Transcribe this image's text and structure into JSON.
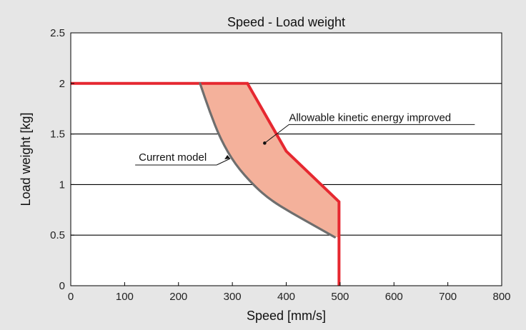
{
  "chart_data": {
    "type": "line",
    "title": "Speed - Load weight",
    "xlabel": "Speed [mm/s]",
    "ylabel": "Load weight [kg]",
    "xlim": [
      0,
      800
    ],
    "ylim": [
      0,
      2.5
    ],
    "xticks": [
      0,
      100,
      200,
      300,
      400,
      500,
      600,
      700,
      800
    ],
    "yticks": [
      0,
      0.5,
      1,
      1.5,
      2,
      2.5
    ],
    "x_tick_labels": [
      "0",
      "100",
      "200",
      "300",
      "400",
      "500",
      "600",
      "700",
      "800"
    ],
    "y_tick_labels": [
      "0",
      "0.5",
      "1",
      "1.5",
      "2",
      "2.5"
    ],
    "grid": "horizontal",
    "colors": {
      "background": "#e6e6e6",
      "plot_area": "#ffffff",
      "improved_line": "#e62830",
      "current_line": "#6e6e6e",
      "fill": "#f4b19b",
      "grid": "#000000"
    },
    "series": [
      {
        "name": "Allowable kinetic energy improved",
        "x": [
          0,
          328,
          400,
          498,
          498,
          498
        ],
        "y": [
          2.0,
          2.0,
          1.33,
          0.83,
          0.48,
          0.0
        ]
      },
      {
        "name": "Current model",
        "x": [
          240,
          258,
          278,
          305,
          340,
          370,
          410,
          450,
          490
        ],
        "y": [
          2.0,
          1.72,
          1.45,
          1.2,
          0.99,
          0.85,
          0.72,
          0.6,
          0.48
        ]
      }
    ],
    "annotations": [
      {
        "text": "Allowable kinetic energy improved",
        "target_x": 360,
        "target_y": 1.41
      },
      {
        "text": "Current model",
        "target_x": 300,
        "target_y": 1.25
      }
    ]
  }
}
